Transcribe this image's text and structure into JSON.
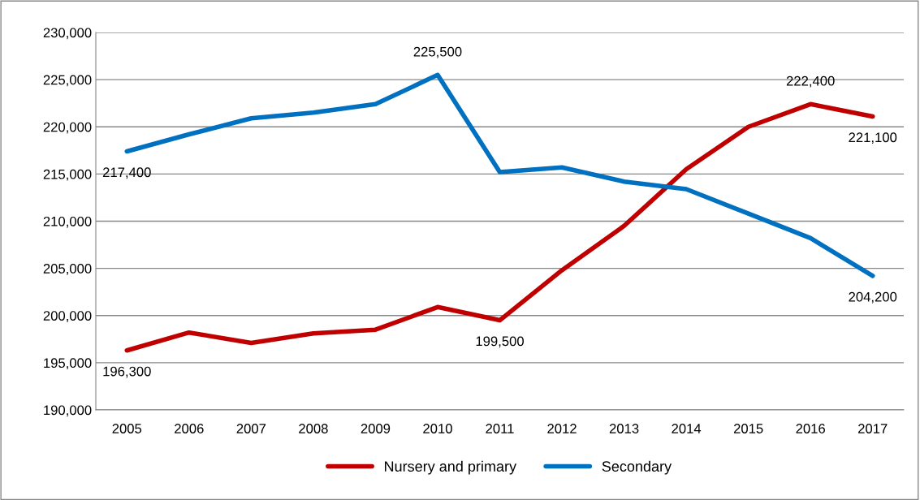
{
  "chart_data": {
    "type": "line",
    "categories": [
      "2005",
      "2006",
      "2007",
      "2008",
      "2009",
      "2010",
      "2011",
      "2012",
      "2013",
      "2014",
      "2015",
      "2016",
      "2017"
    ],
    "series": [
      {
        "name": "Nursery and primary",
        "color": "#c00000",
        "values": [
          196300,
          198200,
          197100,
          198100,
          198500,
          200900,
          199500,
          204800,
          209500,
          215500,
          220000,
          222400,
          221100
        ],
        "value_labels": [
          "196,300",
          null,
          null,
          null,
          null,
          null,
          "199,500",
          null,
          null,
          null,
          null,
          "222,400",
          "221,100"
        ]
      },
      {
        "name": "Secondary",
        "color": "#0070c0",
        "values": [
          217400,
          219200,
          220900,
          221500,
          222400,
          225500,
          215200,
          215700,
          214200,
          213400,
          210800,
          208200,
          204200
        ],
        "value_labels": [
          "217,400",
          null,
          null,
          null,
          null,
          "225,500",
          null,
          null,
          null,
          null,
          null,
          null,
          "204,200"
        ]
      }
    ],
    "ylim": [
      190000,
      230000
    ],
    "yticks": [
      {
        "value": 190000,
        "label": "190,000"
      },
      {
        "value": 195000,
        "label": "195,000"
      },
      {
        "value": 200000,
        "label": "200,000"
      },
      {
        "value": 205000,
        "label": "205,000"
      },
      {
        "value": 210000,
        "label": "210,000"
      },
      {
        "value": 215000,
        "label": "215,000"
      },
      {
        "value": 220000,
        "label": "220,000"
      },
      {
        "value": 225000,
        "label": "225,000"
      },
      {
        "value": 230000,
        "label": "230,000"
      }
    ],
    "grid": "y",
    "legend": "bottom",
    "marker": "none",
    "line_style": "solid"
  }
}
